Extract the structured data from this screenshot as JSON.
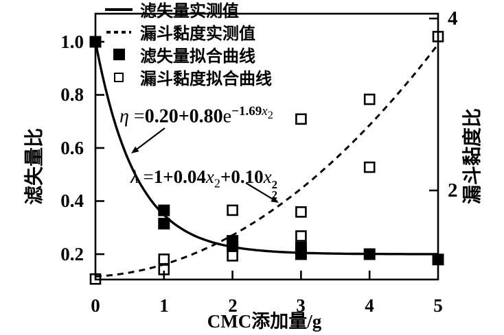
{
  "figure": {
    "background": "#ffffff",
    "ink": "#000000"
  },
  "legend": {
    "items": [
      {
        "label": "滤失量实测值",
        "marker": "solid-line"
      },
      {
        "label": "漏斗黏度实测值",
        "marker": "dashed-line"
      },
      {
        "label": "滤失量拟合曲线",
        "marker": "filled-square"
      },
      {
        "label": "漏斗黏度拟合曲线",
        "marker": "open-square"
      }
    ]
  },
  "equations": {
    "eta": {
      "lhs": "η",
      "rel": " =",
      "coef": "0.20+0.80",
      "base": "e",
      "exp": "−1.69",
      "exp_var": "x",
      "exp_sub": "2"
    },
    "lambda": {
      "lhs": "λ",
      "rel": " =",
      "t1": "1+0.04",
      "v1": "x",
      "s1": "2",
      "t2": "+0.10",
      "v2": "x",
      "s2": "2",
      "p2": "2"
    }
  },
  "chart_data": {
    "type": "line+scatter, dual y-axis",
    "title": "",
    "grid": false,
    "legend_position": "upper-left, no frame",
    "x_axis": {
      "label": "CMC添加量/g",
      "range": [
        0,
        5
      ],
      "ticks": [
        {
          "label": "0",
          "value": 0
        },
        {
          "label": "1",
          "value": 1
        },
        {
          "label": "2",
          "value": 2
        },
        {
          "label": "3",
          "value": 3
        },
        {
          "label": "4",
          "value": 4
        },
        {
          "label": "5",
          "value": 5
        }
      ]
    },
    "left_axis": {
      "label": "滤失量比",
      "range": [
        0.1,
        1.1
      ],
      "ticks": [
        {
          "label": "1.0",
          "value": 1.0
        },
        {
          "label": "0.8",
          "value": 0.8
        },
        {
          "label": "0.6",
          "value": 0.6
        },
        {
          "label": "0.4",
          "value": 0.4
        },
        {
          "label": "0.2",
          "value": 0.2
        }
      ]
    },
    "right_axis": {
      "label": "漏斗黏度比",
      "range": [
        0.96,
        4.06
      ],
      "ticks": [
        {
          "label": "4",
          "value": 4
        },
        {
          "label": "2",
          "value": 2
        }
      ]
    },
    "curves": [
      {
        "name": "滤失量实测值",
        "axis": "left",
        "style": "solid",
        "model": "y = a + b*exp(-k*x)",
        "a": 0.2,
        "b": 0.8,
        "k": 1.69
      },
      {
        "name": "漏斗黏度实测值",
        "axis": "right",
        "style": "dashed",
        "model": "y = c0 + c1*x + c2*x^2",
        "c0": 1,
        "c1": 0.04,
        "c2": 0.1
      }
    ],
    "series": [
      {
        "name": "滤失量拟合曲线",
        "axis": "left",
        "marker": "filled-square",
        "points": [
          [
            0,
            1.0
          ],
          [
            1,
            0.365
          ],
          [
            1,
            0.315
          ],
          [
            2,
            0.25
          ],
          [
            2,
            0.23
          ],
          [
            3,
            0.225
          ],
          [
            3,
            0.2
          ],
          [
            4,
            0.2
          ],
          [
            5,
            0.18
          ]
        ]
      },
      {
        "name": "漏斗黏度拟合曲线",
        "axis": "right",
        "marker": "open-square",
        "points": [
          [
            0,
            0.97
          ],
          [
            1,
            1.2
          ],
          [
            1,
            1.08
          ],
          [
            2,
            1.77
          ],
          [
            2,
            1.24
          ],
          [
            3,
            2.83
          ],
          [
            3,
            1.75
          ],
          [
            3,
            1.47
          ],
          [
            4,
            3.06
          ],
          [
            4,
            2.27
          ],
          [
            5,
            3.79
          ]
        ]
      }
    ]
  }
}
